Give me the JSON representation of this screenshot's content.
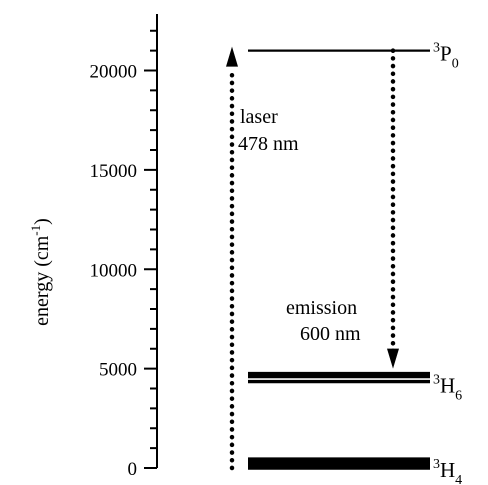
{
  "chart_data": {
    "type": "energy-level-diagram",
    "ylabel": "energy (cm",
    "ylabel_exp": "-1",
    "ylabel_close": ")",
    "ylim": [
      0,
      22600
    ],
    "ticks": [
      {
        "value": 0,
        "label": "0"
      },
      {
        "value": 5000,
        "label": "5000"
      },
      {
        "value": 10000,
        "label": "10000"
      },
      {
        "value": 15000,
        "label": "15000"
      },
      {
        "value": 20000,
        "label": "20000"
      }
    ],
    "levels": [
      {
        "state": "3P0",
        "sup": "3",
        "main": "P",
        "sub": "0",
        "energies": [
          21000
        ]
      },
      {
        "state": "3H6",
        "sup": "3",
        "main": "H",
        "sub": "6",
        "energies": [
          4350,
          4600,
          4750
        ]
      },
      {
        "state": "3H4",
        "sup": "3",
        "main": "H",
        "sub": "4",
        "energies": [
          0,
          150,
          300,
          450
        ]
      }
    ],
    "transitions": [
      {
        "kind": "excitation",
        "line1": "laser",
        "line2": "478 nm",
        "from": 0,
        "to": 21000
      },
      {
        "kind": "emission",
        "line1": "emission",
        "line2": "600 nm",
        "from": 21000,
        "to": 4600
      }
    ]
  }
}
